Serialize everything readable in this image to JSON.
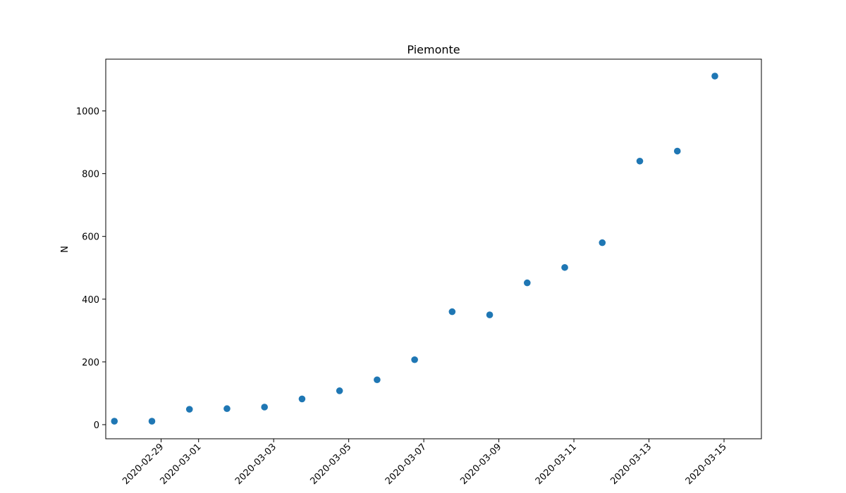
{
  "chart_data": {
    "type": "scatter",
    "title": "Piemonte",
    "xlabel": "",
    "ylabel": "N",
    "x_ticks": [
      "2020-02-29",
      "2020-03-01",
      "2020-03-03",
      "2020-03-05",
      "2020-03-07",
      "2020-03-09",
      "2020-03-11",
      "2020-03-13",
      "2020-03-15"
    ],
    "y_ticks": [
      "0",
      "200",
      "400",
      "600",
      "800",
      "1000"
    ],
    "xlim": [
      "2020-02-28",
      "2020-03-16"
    ],
    "ylim": [
      -45,
      1165
    ],
    "grid": false,
    "marker_color": "#1f77b4",
    "series": [
      {
        "x": [
          "2020-02-28",
          "2020-02-29",
          "2020-03-01",
          "2020-03-02",
          "2020-03-03",
          "2020-03-04",
          "2020-03-05",
          "2020-03-06",
          "2020-03-07",
          "2020-03-08",
          "2020-03-09",
          "2020-03-10",
          "2020-03-11",
          "2020-03-12",
          "2020-03-13",
          "2020-03-14",
          "2020-03-15"
        ],
        "y": [
          11,
          11,
          49,
          51,
          56,
          82,
          108,
          143,
          207,
          360,
          350,
          452,
          501,
          580,
          840,
          872,
          1111
        ]
      }
    ]
  }
}
